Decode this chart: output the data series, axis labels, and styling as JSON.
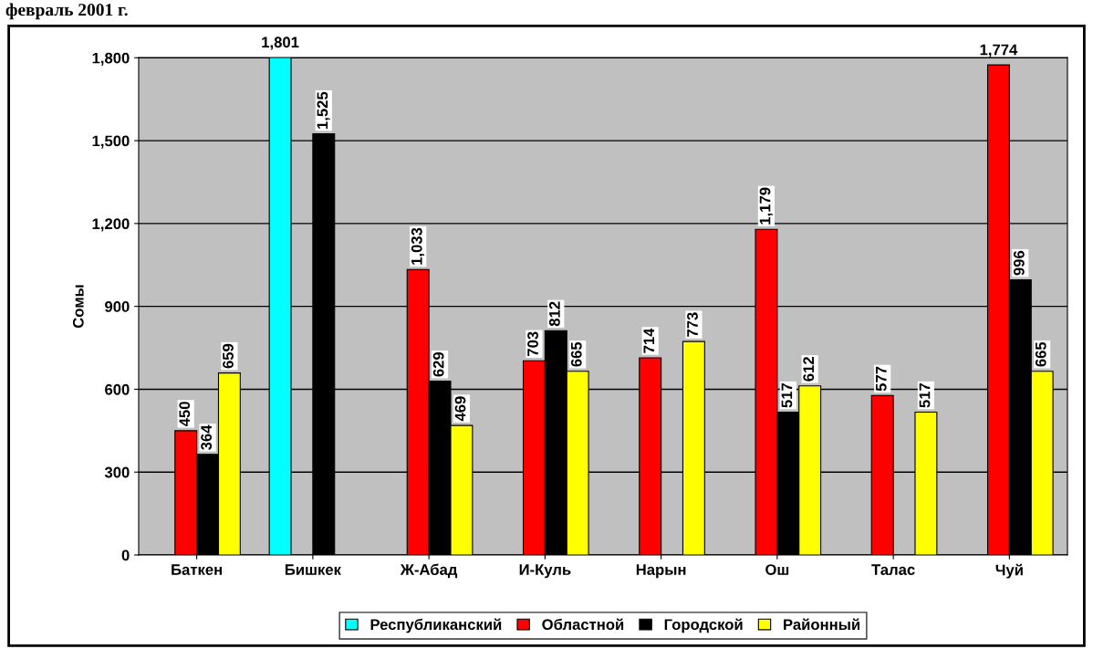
{
  "chart_data": {
    "type": "bar",
    "title": "февраль 2001 г.",
    "ylabel": "Сомы",
    "categories": [
      "Баткен",
      "Бишкек",
      "Ж-Абад",
      "И-Куль",
      "Нарын",
      "Ош",
      "Талас",
      "Чуй"
    ],
    "series": [
      {
        "name": "Республиканский",
        "color": "#00ffff",
        "values": [
          null,
          1801,
          null,
          null,
          null,
          null,
          null,
          null
        ],
        "value_labels": [
          null,
          "1,801",
          null,
          null,
          null,
          null,
          null,
          null
        ]
      },
      {
        "name": "Областной",
        "color": "#ff0000",
        "values": [
          450,
          null,
          1033,
          703,
          714,
          1179,
          577,
          1774
        ],
        "value_labels": [
          "450",
          null,
          "1,033",
          "703",
          "714",
          "1,179",
          "577",
          "1,774"
        ]
      },
      {
        "name": "Городской",
        "color": "#000000",
        "values": [
          364,
          1525,
          629,
          812,
          null,
          517,
          null,
          996
        ],
        "value_labels": [
          "364",
          "1,525",
          "629",
          "812",
          null,
          "517",
          null,
          "996"
        ]
      },
      {
        "name": "Районный",
        "color": "#ffff00",
        "values": [
          659,
          null,
          469,
          665,
          773,
          612,
          517,
          665
        ],
        "value_labels": [
          "659",
          null,
          "469",
          "665",
          "773",
          "612",
          "517",
          "665"
        ]
      }
    ],
    "ylim": [
      0,
      1801
    ],
    "yticks": [
      0,
      300,
      600,
      900,
      {
        "value": 1200,
        "label": "1,200"
      },
      {
        "value": 1500,
        "label": "1,500"
      },
      {
        "value": 1800,
        "label": "1,800"
      }
    ],
    "grid": "y",
    "legend": "bottom"
  }
}
